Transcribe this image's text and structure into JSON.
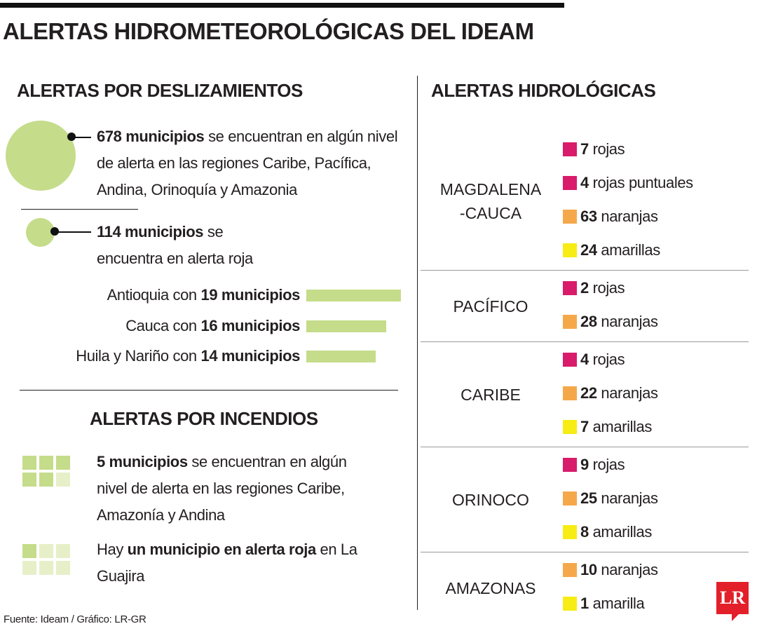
{
  "title": "ALERTAS HIDROMETEOROLÓGICAS DEL IDEAM",
  "landslides": {
    "heading": "ALERTAS POR DESLIZAMIENTOS",
    "total": {
      "value": 678,
      "bold": "678 municipios",
      "text": "se encuentran en algún nivel de alerta en las regiones Caribe, Pacífica, Andina, Orinoquía y Amazonia",
      "color": "#c5dc8a"
    },
    "red": {
      "value": 114,
      "bold": "114 municipios",
      "text": "se encuentra en alerta roja",
      "color": "#c5dc8a"
    },
    "departments": [
      {
        "prefix": "Antioquia con",
        "bold": "19 municipios",
        "value": 19
      },
      {
        "prefix": "Cauca con",
        "bold": "16 municipios",
        "value": 16
      },
      {
        "prefix": "Huila y Nariño con",
        "bold": "14 municipios",
        "value": 14
      }
    ],
    "bar_color": "#c5dc8a"
  },
  "fires": {
    "heading": "ALERTAS POR INCENDIOS",
    "items": [
      {
        "value": 5,
        "parts": [
          {
            "text": "5 municipios",
            "bold": true
          },
          {
            "text": "se encuentran en algún nivel de alerta en las regiones Caribe, Amazonía y Andina",
            "bold": false
          }
        ]
      },
      {
        "value": 1,
        "parts": [
          {
            "text": "Hay",
            "bold": false
          },
          {
            "text": "un municipio en alerta roja",
            "bold": true
          },
          {
            "text": "en La Guajira",
            "bold": false
          }
        ]
      }
    ],
    "filled_color": "#c5dc8a",
    "empty_color": "#e6efc8"
  },
  "hydro": {
    "heading": "ALERTAS HIDROLÓGICAS",
    "regions": [
      {
        "name": [
          "MAGDALENA",
          "-CAUCA"
        ],
        "items": [
          {
            "count": 7,
            "label": "rojas",
            "color": "#d81b6a"
          },
          {
            "count": 4,
            "label": "rojas puntuales",
            "color": "#d81b6a"
          },
          {
            "count": 63,
            "label": "naranjas",
            "color": "#f5a84a"
          },
          {
            "count": 24,
            "label": "amarillas",
            "color": "#f7ec13"
          }
        ]
      },
      {
        "name": [
          "PACÍFICO"
        ],
        "items": [
          {
            "count": 2,
            "label": "rojas",
            "color": "#d81b6a"
          },
          {
            "count": 28,
            "label": "naranjas",
            "color": "#f5a84a"
          }
        ]
      },
      {
        "name": [
          "CARIBE"
        ],
        "items": [
          {
            "count": 4,
            "label": "rojas",
            "color": "#d81b6a"
          },
          {
            "count": 22,
            "label": "naranjas",
            "color": "#f5a84a"
          },
          {
            "count": 7,
            "label": "amarillas",
            "color": "#f7ec13"
          }
        ]
      },
      {
        "name": [
          "ORINOCO"
        ],
        "items": [
          {
            "count": 9,
            "label": "rojas",
            "color": "#d81b6a"
          },
          {
            "count": 25,
            "label": "naranjas",
            "color": "#f5a84a"
          },
          {
            "count": 8,
            "label": "amarillas",
            "color": "#f7ec13"
          }
        ]
      },
      {
        "name": [
          "AMAZONAS"
        ],
        "items": [
          {
            "count": 10,
            "label": "naranjas",
            "color": "#f5a84a"
          },
          {
            "count": 1,
            "label": "amarilla",
            "color": "#f7ec13"
          }
        ]
      }
    ]
  },
  "source": "Fuente: Ideam / Gráfico: LR-GR",
  "logo": "LR"
}
